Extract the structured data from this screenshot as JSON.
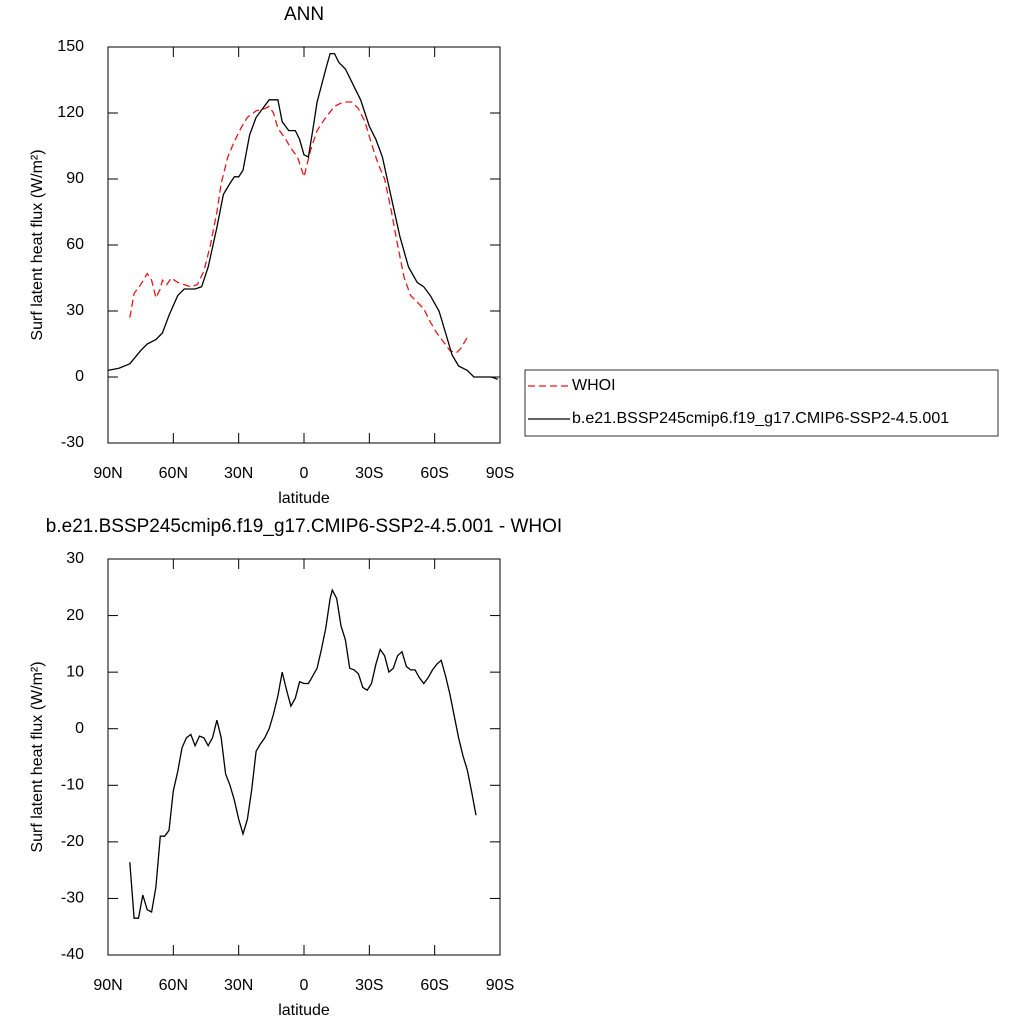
{
  "chart_data": [
    {
      "type": "line",
      "title": "ANN",
      "x_label": "latitude",
      "y_label": "Surf latent heat flux (W/m²)",
      "xlim": [
        90,
        -90
      ],
      "xticks": [
        {
          "value": 90,
          "label": "90N"
        },
        {
          "value": 60,
          "label": "60N"
        },
        {
          "value": 30,
          "label": "30N"
        },
        0,
        {
          "value": -30,
          "label": "30S"
        },
        {
          "value": -60,
          "label": "60S"
        },
        {
          "value": -90,
          "label": "90S"
        }
      ],
      "ylim": [
        -30,
        150
      ],
      "yticks": [
        -30,
        0,
        30,
        60,
        90,
        120,
        150
      ],
      "legend": "right",
      "series": [
        {
          "name": "WHOI",
          "color": "#e8161b",
          "dash": true,
          "x": [
            80,
            78,
            75,
            72,
            70,
            68,
            66,
            65,
            63,
            61,
            58,
            55,
            52,
            49,
            46,
            43,
            40,
            38,
            35,
            32,
            29,
            26,
            22,
            18,
            16,
            14,
            12,
            9,
            6,
            3,
            0,
            -3,
            -6,
            -10,
            -14,
            -18,
            -22,
            -25,
            -28,
            -31,
            -34,
            -37,
            -40,
            -43,
            -46,
            -49,
            -52,
            -55,
            -58,
            -61,
            -64,
            -67,
            -70,
            -72,
            -75
          ],
          "values": [
            27,
            38,
            42,
            47,
            44,
            36,
            40,
            44,
            42,
            45,
            43,
            42,
            41,
            42,
            48,
            60,
            75,
            88,
            100,
            107,
            113,
            118,
            121,
            122,
            123,
            120,
            113,
            109,
            104,
            100,
            91,
            103,
            112,
            118,
            123,
            125,
            125,
            122,
            116,
            106,
            97,
            90,
            76,
            60,
            45,
            37,
            34,
            31,
            25,
            20,
            16,
            12,
            11,
            13,
            18
          ]
        },
        {
          "name": "b.e21.BSSP245cmip6.f19_g17.CMIP6-SSP2-4.5.001",
          "color": "#000000",
          "dash": false,
          "x": [
            90,
            85,
            80,
            75,
            72,
            68,
            65,
            62,
            58,
            55,
            50,
            47,
            44,
            40,
            37,
            34,
            32,
            30,
            28,
            25,
            22,
            19,
            16,
            12,
            10,
            7,
            4,
            2,
            0,
            -2,
            -4,
            -6,
            -10,
            -12,
            -14,
            -16,
            -19,
            -22,
            -26,
            -30,
            -33,
            -36,
            -40,
            -44,
            -48,
            -52,
            -55,
            -58,
            -62,
            -65,
            -68,
            -71,
            -75,
            -78,
            -82,
            -86,
            -89
          ],
          "values": [
            3,
            4,
            6,
            12,
            15,
            17,
            20,
            28,
            37,
            40,
            40,
            41,
            50,
            68,
            83,
            88,
            91,
            91,
            94,
            110,
            118,
            122,
            126,
            126,
            116,
            112,
            112,
            108,
            101,
            100,
            112,
            125,
            140,
            147,
            147,
            143,
            140,
            134,
            126,
            114,
            108,
            100,
            82,
            64,
            50,
            43,
            41,
            37,
            30,
            20,
            10,
            5,
            3,
            0,
            0,
            0,
            -1
          ]
        }
      ]
    },
    {
      "type": "line",
      "title": "b.e21.BSSP245cmip6.f19_g17.CMIP6-SSP2-4.5.001 - WHOI",
      "x_label": "latitude",
      "y_label": "Surf latent heat flux (W/m²)",
      "xlim": [
        90,
        -90
      ],
      "xticks": [
        {
          "value": 90,
          "label": "90N"
        },
        {
          "value": 60,
          "label": "60N"
        },
        {
          "value": 30,
          "label": "30N"
        },
        0,
        {
          "value": -30,
          "label": "30S"
        },
        {
          "value": -60,
          "label": "60S"
        },
        {
          "value": -90,
          "label": "90S"
        }
      ],
      "ylim": [
        -40,
        30
      ],
      "yticks": [
        -40,
        -30,
        -20,
        -10,
        0,
        10,
        20,
        30
      ],
      "series": [
        {
          "color": "#000000",
          "dash": false,
          "x": [
            80,
            78,
            76,
            74,
            72,
            70,
            68,
            66,
            64,
            62,
            60,
            58,
            56,
            54,
            52,
            50,
            48,
            46,
            44,
            42,
            40,
            38,
            36,
            34,
            32,
            30,
            28,
            26,
            24,
            22,
            20,
            18,
            16,
            14,
            12,
            10,
            8,
            6,
            4,
            2,
            0,
            -2,
            -4,
            -6,
            -8,
            -10,
            -12,
            -13,
            -15,
            -17,
            -19,
            -21,
            -23,
            -25,
            -27,
            -29,
            -31,
            -33,
            -35,
            -37,
            -39,
            -41,
            -43,
            -45,
            -47,
            -49,
            -51,
            -53,
            -55,
            -57,
            -59,
            -61,
            -63,
            -65,
            -67,
            -69,
            -71,
            -73,
            -75,
            -77,
            -79
          ],
          "values": [
            -23.6,
            -33.5,
            -33.5,
            -29.4,
            -32,
            -32.4,
            -28,
            -19,
            -19,
            -18,
            -11,
            -7.6,
            -3.4,
            -1.6,
            -1,
            -3,
            -1.3,
            -1.6,
            -3,
            -1.6,
            1.5,
            -1.6,
            -8,
            -10,
            -12.6,
            -16,
            -18.6,
            -16,
            -10.8,
            -4,
            -2.7,
            -1.6,
            0,
            2.6,
            5.8,
            10,
            6.8,
            4,
            5.4,
            8.3,
            8,
            8,
            9.3,
            10.7,
            14,
            17.8,
            23,
            24.5,
            23,
            18.2,
            15.7,
            10.7,
            10.4,
            9.7,
            7.3,
            6.8,
            8,
            11.4,
            14,
            12.9,
            10,
            10.7,
            12.9,
            13.6,
            11,
            10.4,
            10.4,
            9,
            8,
            9,
            10.4,
            11.4,
            12.1,
            9.3,
            6.1,
            2.2,
            -1.6,
            -4.8,
            -7.3,
            -11.2,
            -15.3
          ]
        }
      ]
    }
  ]
}
